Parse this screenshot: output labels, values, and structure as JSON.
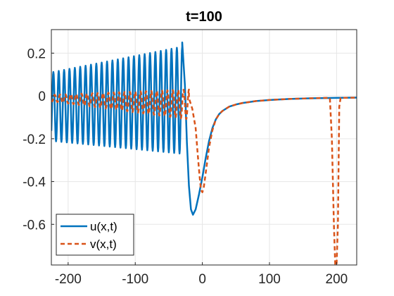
{
  "chart_data": {
    "type": "line",
    "title": "t=100",
    "xlabel": "",
    "ylabel": "",
    "xlim": [
      -225,
      230
    ],
    "ylim": [
      -0.79,
      0.31
    ],
    "grid": true,
    "legend_position": "bottom-left",
    "x_ticks": [
      {
        "value": -200,
        "label": "-200"
      },
      {
        "value": -100,
        "label": "-100"
      },
      {
        "value": 0,
        "label": "0"
      },
      {
        "value": 100,
        "label": "100"
      },
      {
        "value": 200,
        "label": "200"
      }
    ],
    "y_ticks": [
      {
        "value": 0.2,
        "label": "0.2"
      },
      {
        "value": 0,
        "label": "0"
      },
      {
        "value": -0.2,
        "label": "-0.2"
      },
      {
        "value": -0.4,
        "label": "-0.4"
      },
      {
        "value": -0.6,
        "label": "-0.6"
      }
    ],
    "series": [
      {
        "name": "u(x,t)",
        "color": "#0072BD",
        "style": "solid",
        "oscillation": {
          "x_start": -225,
          "x_end": -30,
          "period": 8,
          "center_start": -0.05,
          "center_end": -0.02,
          "amplitude_start": 0.16,
          "amplitude_end": 0.25,
          "last_peak": {
            "x": -30,
            "y": 0.25
          }
        },
        "points": [
          [
            -30,
            0.25
          ],
          [
            -26,
            0.05
          ],
          [
            -23,
            -0.22
          ],
          [
            -20,
            -0.42
          ],
          [
            -17,
            -0.53
          ],
          [
            -14,
            -0.555
          ],
          [
            -10,
            -0.53
          ],
          [
            -5,
            -0.46
          ],
          [
            0,
            -0.38
          ],
          [
            5,
            -0.29
          ],
          [
            10,
            -0.21
          ],
          [
            15,
            -0.15
          ],
          [
            20,
            -0.11
          ],
          [
            25,
            -0.085
          ],
          [
            30,
            -0.07
          ],
          [
            40,
            -0.05
          ],
          [
            50,
            -0.04
          ],
          [
            60,
            -0.033
          ],
          [
            80,
            -0.024
          ],
          [
            100,
            -0.019
          ],
          [
            130,
            -0.014
          ],
          [
            160,
            -0.011
          ],
          [
            200,
            -0.009
          ],
          [
            230,
            -0.008
          ]
        ]
      },
      {
        "name": "v(x,t)",
        "color": "#D95319",
        "style": "dashed",
        "oscillation": {
          "x_start": -225,
          "x_end": -20,
          "period": 8,
          "center_start": -0.01,
          "center_end": -0.04,
          "amplitude_start": 0.015,
          "amplitude_end": 0.07
        },
        "points": [
          [
            -20,
            -0.01
          ],
          [
            -15,
            -0.06
          ],
          [
            -10,
            -0.15
          ],
          [
            -7,
            -0.27
          ],
          [
            -4,
            -0.38
          ],
          [
            -2,
            -0.44
          ],
          [
            0,
            -0.45
          ],
          [
            2,
            -0.43
          ],
          [
            5,
            -0.36
          ],
          [
            10,
            -0.24
          ],
          [
            15,
            -0.16
          ],
          [
            20,
            -0.11
          ],
          [
            25,
            -0.085
          ],
          [
            30,
            -0.07
          ],
          [
            40,
            -0.05
          ],
          [
            50,
            -0.04
          ],
          [
            60,
            -0.033
          ],
          [
            80,
            -0.024
          ],
          [
            100,
            -0.019
          ],
          [
            130,
            -0.014
          ],
          [
            160,
            -0.011
          ],
          [
            190,
            -0.009
          ],
          [
            193,
            -0.2
          ],
          [
            196,
            -0.6
          ],
          [
            198,
            -0.79
          ],
          [
            200,
            -0.79
          ],
          [
            202,
            -0.6
          ],
          [
            204,
            -0.05
          ],
          [
            206,
            -0.009
          ],
          [
            230,
            -0.008
          ]
        ]
      }
    ]
  }
}
